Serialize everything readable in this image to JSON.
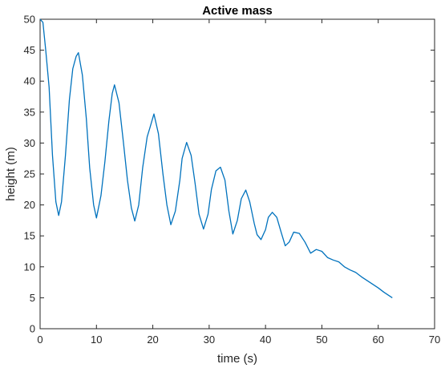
{
  "chart_data": {
    "type": "line",
    "title": "Active mass",
    "xlabel": "time (s)",
    "ylabel": "height (m)",
    "xlim": [
      0,
      70
    ],
    "ylim": [
      0,
      50
    ],
    "x_ticks": [
      0,
      10,
      20,
      30,
      40,
      50,
      60,
      70
    ],
    "y_ticks": [
      0,
      5,
      10,
      15,
      20,
      25,
      30,
      35,
      40,
      45,
      50
    ],
    "grid": false,
    "line_color": "#0072BD",
    "series": [
      {
        "x": [
          0,
          0.5,
          1.0,
          1.6,
          2.2,
          2.8,
          3.3,
          3.8,
          4.5,
          5.2,
          5.8,
          6.4,
          6.8,
          7.5,
          8.2,
          8.8,
          9.5,
          10.0,
          10.8,
          11.5,
          12.2,
          12.8,
          13.2,
          14.0,
          14.8,
          15.5,
          16.2,
          16.8,
          17.5,
          18.2,
          19.0,
          19.5,
          20.2,
          21.0,
          21.8,
          22.5,
          23.2,
          24.0,
          24.8,
          25.2,
          26.0,
          26.8,
          27.5,
          28.2,
          29.0,
          29.8,
          30.4,
          31.2,
          32.0,
          32.8,
          33.5,
          34.2,
          35.0,
          35.7,
          36.5,
          37.2,
          38.0,
          38.5,
          39.2,
          40.0,
          40.5,
          41.2,
          42.0,
          42.8,
          43.5,
          44.2,
          45.0,
          46.0,
          47.0,
          48.0,
          49.0,
          50.0,
          51.0,
          52.0,
          53.0,
          54.0,
          55.0,
          56.0,
          57.0,
          58.0,
          59.0,
          60.0,
          61.0,
          62.5
        ],
        "y": [
          50,
          49.5,
          45,
          39,
          28,
          20.5,
          18.3,
          20.5,
          28,
          37,
          42,
          44,
          44.6,
          41,
          34,
          26,
          20,
          17.9,
          21.5,
          27,
          33.5,
          38,
          39.4,
          36.5,
          30,
          24,
          19.5,
          17.4,
          20,
          26,
          31,
          32.5,
          34.7,
          31.5,
          25,
          20,
          16.8,
          19,
          24,
          27.5,
          30.1,
          28,
          23.5,
          18.5,
          16.1,
          18.5,
          22.5,
          25.5,
          26.1,
          24,
          19,
          15.3,
          17.5,
          21,
          22.4,
          20.5,
          17,
          15.2,
          14.4,
          16,
          18,
          18.8,
          18,
          15.5,
          13.4,
          14,
          15.6,
          15.4,
          14,
          12.2,
          12.8,
          12.5,
          11.5,
          11.1,
          10.8,
          10,
          9.5,
          9.1,
          8.4,
          7.8,
          7.2,
          6.6,
          5.9,
          5.0
        ]
      }
    ]
  }
}
